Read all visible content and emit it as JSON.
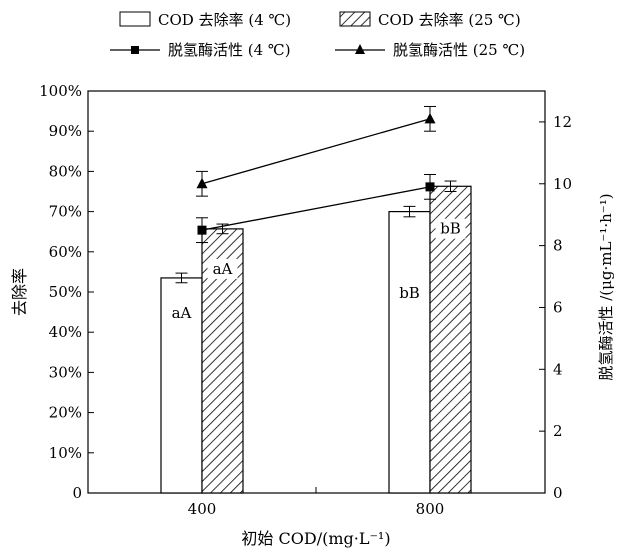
{
  "chart_data": {
    "type": "bar",
    "categories": [
      "400",
      "800"
    ],
    "xlabel": "初始 COD/(mg·L⁻¹)",
    "ylabel": "去除率",
    "y2label": "脱氢酶活性 /(μg·mL⁻¹·h⁻¹)",
    "ylim": [
      0,
      100
    ],
    "y2lim": [
      0,
      13
    ],
    "yticks": [
      "0",
      "10%",
      "20%",
      "30%",
      "40%",
      "50%",
      "60%",
      "70%",
      "80%",
      "90%",
      "100%"
    ],
    "y2ticks": [
      "0",
      "2",
      "4",
      "6",
      "8",
      "10",
      "12"
    ],
    "legend_position": "top",
    "series": [
      {
        "name": "COD 去除率 (4 ℃)",
        "kind": "bar",
        "fill": "white",
        "values": [
          53.5,
          70.0
        ],
        "errors": [
          1.2,
          1.3
        ],
        "labels": [
          "aA",
          "bB"
        ]
      },
      {
        "name": "COD 去除率 (25 ℃)",
        "kind": "bar",
        "fill": "hatched",
        "values": [
          65.7,
          76.3
        ],
        "errors": [
          1.2,
          1.3
        ],
        "labels": [
          "aA",
          "bB"
        ]
      },
      {
        "name": "脱氢酶活性 (4 ℃)",
        "kind": "line",
        "marker": "square",
        "axis": "right",
        "values": [
          8.5,
          9.9
        ],
        "errors": [
          0.4,
          0.4
        ]
      },
      {
        "name": "脱氢酶活性 (25 ℃)",
        "kind": "line",
        "marker": "triangle",
        "axis": "right",
        "values": [
          10.0,
          12.1
        ],
        "errors": [
          0.4,
          0.4
        ]
      }
    ]
  }
}
